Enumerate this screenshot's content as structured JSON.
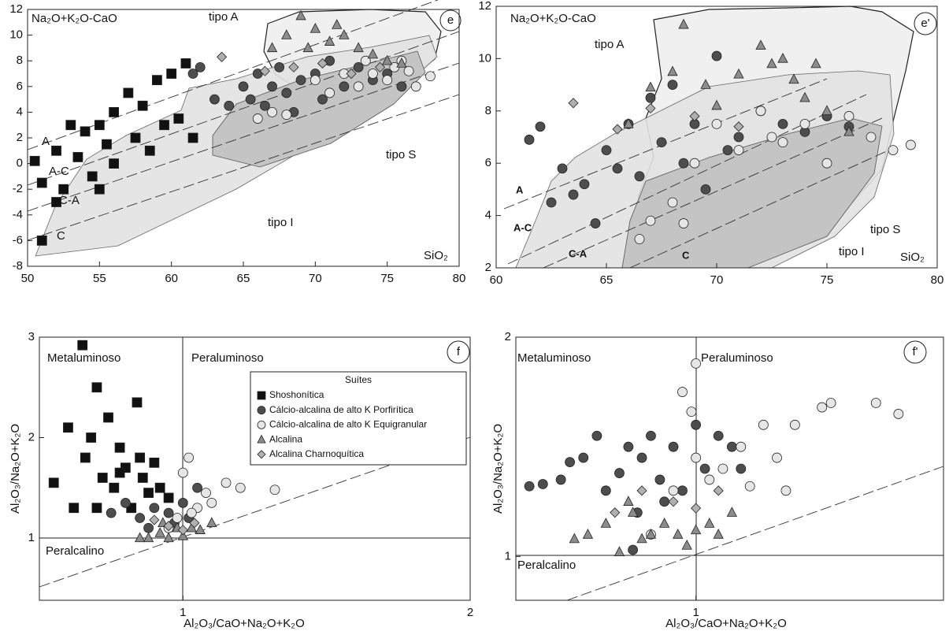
{
  "chart_data": [
    {
      "type": "scatter",
      "panel": "e",
      "y_label": "Na₂O+K₂O-CaO",
      "x_label": "SiO₂",
      "annotations": [
        "tipo A",
        "tipo S",
        "tipo I",
        "A",
        "A-C",
        "C-A",
        "C"
      ],
      "xlim": [
        50,
        80
      ],
      "xticks": [
        50,
        55,
        60,
        65,
        70,
        75,
        80
      ],
      "ylim": [
        -8,
        12
      ],
      "yticks": [
        -8,
        -6,
        -4,
        -2,
        0,
        2,
        4,
        6,
        8,
        10,
        12
      ],
      "series": [
        {
          "color": "#111111",
          "marker": "square",
          "x": [
            50.5,
            51,
            51,
            52,
            52.5,
            53,
            53.5,
            54,
            54.5,
            55,
            55.5,
            56,
            56,
            57,
            57.5,
            58,
            58.5,
            59,
            59.5,
            60,
            60.5,
            61,
            61.5,
            52,
            55
          ],
          "values": [
            0.2,
            -1.5,
            -6,
            1,
            -2,
            3,
            0.5,
            2.5,
            -1,
            3,
            1.5,
            4,
            0,
            5.5,
            2,
            4.5,
            1,
            6.5,
            3,
            7,
            3.5,
            7.8,
            2,
            -3,
            -2
          ]
        },
        {
          "color": "#4d4d4d",
          "marker": "circle",
          "x": [
            61.5,
            62,
            63,
            64,
            65,
            65.5,
            66,
            66.5,
            67,
            67.5,
            68,
            68.5,
            69,
            70,
            70.5,
            71,
            72,
            73,
            74,
            75,
            76
          ],
          "values": [
            7,
            7.5,
            5,
            4.5,
            6,
            5,
            7,
            4.5,
            6,
            7.5,
            5.5,
            4,
            6.5,
            7,
            5,
            8,
            6,
            7.5,
            6.5,
            7,
            6
          ]
        },
        {
          "color": "#e6e6e6",
          "marker": "circle",
          "x": [
            66,
            67,
            68,
            70,
            71,
            72,
            73,
            73.5,
            74,
            75,
            75.5,
            76,
            77,
            78,
            76.5
          ],
          "values": [
            3.5,
            4,
            3.8,
            6.5,
            5.5,
            7,
            6,
            8,
            7,
            6.5,
            7.5,
            8,
            6,
            6.8,
            7.2
          ]
        },
        {
          "color": "#8c8c8c",
          "marker": "triangle",
          "x": [
            67,
            68,
            69,
            70,
            71,
            72,
            73,
            74,
            75,
            76,
            69.5,
            71.5
          ],
          "values": [
            9,
            10,
            11.5,
            10.5,
            9.5,
            10,
            9,
            8.5,
            8,
            7.8,
            9,
            10.8
          ]
        },
        {
          "color": "#b0b0b0",
          "marker": "diamond",
          "x": [
            63.5,
            66.5,
            68.5,
            70.5,
            72.5,
            74.5
          ],
          "values": [
            8.3,
            7.2,
            7.5,
            7.8,
            7,
            7.5
          ]
        }
      ]
    },
    {
      "type": "scatter",
      "panel": "e'",
      "y_label": "Na₂O+K₂O-CaO",
      "x_label": "SiO₂",
      "annotations": [
        "tipo A",
        "tipo S",
        "tipo I",
        "A",
        "A-C",
        "C-A",
        "C"
      ],
      "xlim": [
        60,
        80
      ],
      "xticks": [
        60,
        65,
        70,
        75,
        80
      ],
      "ylim": [
        2,
        12
      ],
      "yticks": [
        2,
        4,
        6,
        8,
        10,
        12
      ],
      "series": [
        {
          "color": "#4d4d4d",
          "marker": "circle",
          "x": [
            61.5,
            62,
            62.5,
            63,
            63.5,
            64,
            64.5,
            65,
            65.5,
            66,
            66.5,
            67,
            67.5,
            68,
            68.5,
            69,
            69.5,
            70,
            70.5,
            71,
            72,
            73,
            74,
            75,
            76
          ],
          "values": [
            6.9,
            7.4,
            4.5,
            5.8,
            4.8,
            5.2,
            3.7,
            6.5,
            5.8,
            7.5,
            5.5,
            8.5,
            6.8,
            9,
            6,
            7.5,
            5,
            10.1,
            6.5,
            7,
            8,
            7.5,
            7.2,
            7.8,
            7.4
          ]
        },
        {
          "color": "#e6e6e6",
          "marker": "circle",
          "x": [
            66.5,
            67,
            68,
            68.5,
            69,
            70,
            71,
            72,
            72.5,
            73,
            74,
            75,
            76,
            77,
            78,
            78.8
          ],
          "values": [
            3.1,
            3.8,
            4.5,
            3.7,
            6,
            7.5,
            6.5,
            8,
            7,
            6.8,
            7.5,
            6,
            7.8,
            7,
            6.5,
            6.7
          ]
        },
        {
          "color": "#8c8c8c",
          "marker": "triangle",
          "x": [
            66,
            67,
            68,
            68.5,
            69.5,
            70,
            71,
            72,
            72.5,
            73,
            73.5,
            74,
            75,
            76,
            74.5
          ],
          "values": [
            7.5,
            8.9,
            9.5,
            11.3,
            9,
            8.2,
            9.4,
            10.5,
            9.8,
            10,
            9.2,
            8.5,
            8,
            7.2,
            9.8
          ]
        },
        {
          "color": "#b0b0b0",
          "marker": "diamond",
          "x": [
            63.5,
            65.5,
            67,
            69,
            71
          ],
          "values": [
            8.3,
            7.3,
            8.1,
            7.8,
            7.4
          ]
        }
      ]
    },
    {
      "type": "scatter",
      "panel": "f",
      "y_label": "Al₂O₃/Na₂O+K₂O",
      "x_label": "Al₂O₃/CaO+Na₂O+K₂O",
      "annotations": [
        "Metaluminoso",
        "Peraluminoso",
        "Peralcalino"
      ],
      "legend_title": "Suítes",
      "legend": "upper right",
      "xlim": [
        0.5,
        2
      ],
      "xticks": [
        1,
        2
      ],
      "ylim": [
        0.38,
        3
      ],
      "yticks": [
        1,
        2,
        3
      ],
      "series": [
        {
          "name": "Shoshonítica",
          "color": "#111111",
          "marker": "square",
          "x": [
            0.55,
            0.6,
            0.62,
            0.65,
            0.66,
            0.7,
            0.72,
            0.74,
            0.76,
            0.78,
            0.8,
            0.82,
            0.84,
            0.86,
            0.88,
            0.9,
            0.92,
            0.95,
            0.7,
            0.78,
            0.85,
            0.68
          ],
          "values": [
            1.55,
            2.1,
            1.3,
            2.92,
            1.8,
            2.5,
            1.6,
            2.2,
            1.5,
            1.9,
            1.7,
            1.3,
            2.35,
            1.6,
            1.45,
            1.75,
            1.5,
            1.4,
            1.3,
            1.65,
            1.8,
            2.0
          ]
        },
        {
          "name": "Cálcio-alcalina de alto K Porfirítica",
          "color": "#4d4d4d",
          "marker": "circle",
          "x": [
            0.75,
            0.8,
            0.85,
            0.9,
            0.95,
            1.0,
            1.05,
            0.88,
            0.97,
            1.02
          ],
          "values": [
            1.25,
            1.35,
            1.2,
            1.3,
            1.25,
            1.35,
            1.5,
            1.1,
            1.15,
            1.2
          ]
        },
        {
          "name": "Cálcio-alcalina de alto K Equigranular",
          "color": "#e6e6e6",
          "marker": "circle",
          "x": [
            0.95,
            1.0,
            1.02,
            1.05,
            1.08,
            1.1,
            1.15,
            1.2,
            1.32,
            0.98,
            1.03
          ],
          "values": [
            1.1,
            1.65,
            1.8,
            1.3,
            1.45,
            1.35,
            1.55,
            1.5,
            1.48,
            1.2,
            1.25
          ]
        },
        {
          "name": "Alcalina",
          "color": "#8c8c8c",
          "marker": "triangle",
          "x": [
            0.88,
            0.92,
            0.95,
            0.98,
            1.0,
            1.03,
            1.06,
            1.1,
            0.85,
            0.93
          ],
          "values": [
            1.0,
            1.05,
            1.0,
            1.1,
            1.02,
            1.1,
            1.08,
            1.15,
            1.0,
            1.15
          ]
        },
        {
          "name": "Alcalina Charnoquítica",
          "color": "#b0b0b0",
          "marker": "diamond",
          "x": [
            0.9,
            0.95,
            1.0,
            1.04
          ],
          "values": [
            1.18,
            1.12,
            1.08,
            1.15
          ]
        }
      ]
    },
    {
      "type": "scatter",
      "panel": "f'",
      "y_label": "Al₂O₃/Na₂O+K₂O",
      "x_label": "Al₂O₃/CaO+Na₂O+K₂O",
      "annotations": [
        "Metaluminoso",
        "Peraluminoso",
        "Peralcalino"
      ],
      "xlim": [
        0.6,
        1.55
      ],
      "xticks": [
        1
      ],
      "ylim": [
        0.8,
        2
      ],
      "yticks": [
        1,
        2
      ],
      "series": [
        {
          "color": "#4d4d4d",
          "marker": "circle",
          "x": [
            0.63,
            0.66,
            0.7,
            0.72,
            0.75,
            0.78,
            0.8,
            0.83,
            0.85,
            0.87,
            0.88,
            0.9,
            0.92,
            0.95,
            0.97,
            1.0,
            1.02,
            1.05,
            1.08,
            0.86,
            1.1,
            0.93
          ],
          "values": [
            1.32,
            1.33,
            1.35,
            1.43,
            1.45,
            1.55,
            1.3,
            1.38,
            1.5,
            1.2,
            1.45,
            1.55,
            1.35,
            1.5,
            1.3,
            1.6,
            1.4,
            1.55,
            1.5,
            1.03,
            1.4,
            1.25
          ]
        },
        {
          "color": "#e6e6e6",
          "marker": "circle",
          "x": [
            0.9,
            0.95,
            0.97,
            0.99,
            1.0,
            1.0,
            1.03,
            1.06,
            1.1,
            1.12,
            1.15,
            1.18,
            1.22,
            1.28,
            1.3,
            1.45,
            1.4,
            1.2
          ],
          "values": [
            1.1,
            1.3,
            1.75,
            1.66,
            1.88,
            1.45,
            1.35,
            1.4,
            1.5,
            1.32,
            1.6,
            1.45,
            1.6,
            1.68,
            1.7,
            1.65,
            1.7,
            1.3
          ]
        },
        {
          "color": "#8c8c8c",
          "marker": "triangle",
          "x": [
            0.73,
            0.76,
            0.8,
            0.83,
            0.86,
            0.88,
            0.9,
            0.93,
            0.96,
            0.98,
            1.0,
            1.03,
            1.05,
            1.08,
            0.85
          ],
          "values": [
            1.08,
            1.1,
            1.15,
            1.02,
            1.2,
            1.08,
            1.1,
            1.15,
            1.1,
            1.05,
            1.12,
            1.15,
            1.1,
            1.2,
            1.25
          ]
        },
        {
          "color": "#b0b0b0",
          "marker": "diamond",
          "x": [
            0.82,
            0.88,
            0.95,
            1.0,
            1.05
          ],
          "values": [
            1.2,
            1.3,
            1.25,
            1.22,
            1.3
          ]
        }
      ]
    }
  ]
}
